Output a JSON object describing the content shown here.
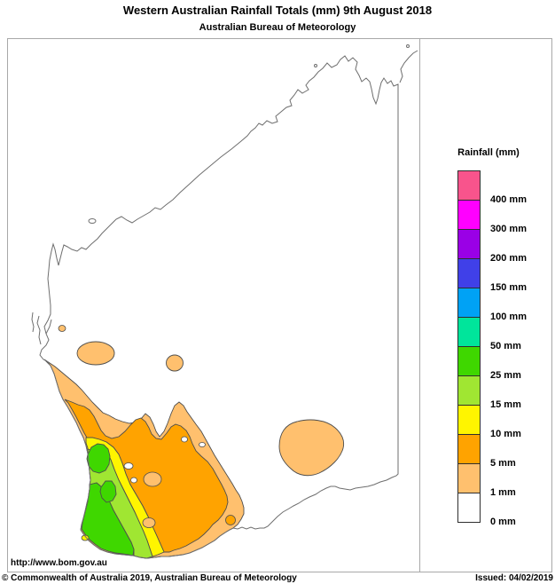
{
  "title": "Western Australian Rainfall Totals (mm) 9th August 2018",
  "subtitle": "Australian Bureau of Meteorology",
  "legend": {
    "title": "Rainfall (mm)",
    "entries": [
      {
        "label": "400 mm",
        "color": "#f8548c"
      },
      {
        "label": "300 mm",
        "color": "#ff00ff"
      },
      {
        "label": "200 mm",
        "color": "#9a00e6"
      },
      {
        "label": "150 mm",
        "color": "#4040e8"
      },
      {
        "label": "100 mm",
        "color": "#00a2f5"
      },
      {
        "label": "50 mm",
        "color": "#00e59b"
      },
      {
        "label": "25 mm",
        "color": "#3fd700"
      },
      {
        "label": "15 mm",
        "color": "#a0e632"
      },
      {
        "label": "10 mm",
        "color": "#fff500"
      },
      {
        "label": "5 mm",
        "color": "#ffa300"
      },
      {
        "label": "1 mm",
        "color": "#ffc06e"
      },
      {
        "label": "0 mm",
        "color": "#ffffff"
      }
    ]
  },
  "colors": {
    "light_orange": "#ffc06e",
    "orange": "#ffa300",
    "yellow": "#fff500",
    "green_yellow": "#a0e632",
    "green": "#3fd700",
    "white": "#ffffff",
    "coastline": "#6e6e6e",
    "contour": "#4d4d4d"
  },
  "footer": {
    "url": "http://www.bom.gov.au",
    "copyright": "© Commonwealth of Australia 2019, Australian Bureau of Meteorology",
    "issued": "Issued: 04/02/2019"
  }
}
